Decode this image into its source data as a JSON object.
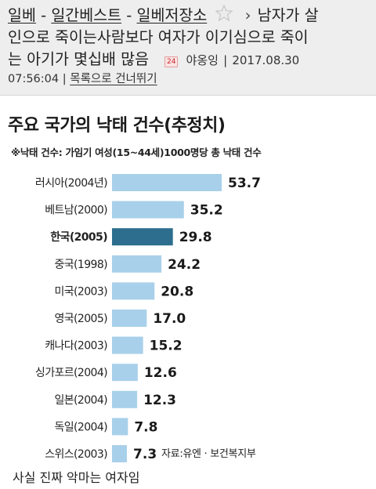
{
  "breadcrumb": {
    "items": [
      "일베",
      "일간베스트",
      "일베저장소"
    ],
    "separator": "-",
    "chevron": "›"
  },
  "post": {
    "title_lines": [
      "남자가 살",
      "인으로 죽이는사람보다 여자가 이기심으로 죽이",
      "는 아기가 몇십배 많음"
    ],
    "badge": "24",
    "author": "야옹잉",
    "date": "2017.08.30",
    "time": "07:56:04",
    "meta_sep": "|",
    "back_to_list": "목록으로 건너뛰기"
  },
  "figure": {
    "title": "주요 국가의 낙태 건수(추정치)",
    "subtitle": "※낙태 건수: 가임기 여성(15~44세)1000명당 총 낙태 건수",
    "source": "자료:유엔 · 보건복지부"
  },
  "chart_data": {
    "type": "bar",
    "orientation": "horizontal",
    "title": "주요 국가의 낙태 건수(추정치)",
    "subtitle": "※낙태 건수: 가임기 여성(15~44세)1000명당 총 낙태 건수",
    "categories": [
      "러시아(2004년)",
      "베트남(2000)",
      "한국(2005)",
      "중국(1998)",
      "미국(2003)",
      "영국(2005)",
      "캐나다(2003)",
      "싱가포르(2004)",
      "일본(2004)",
      "독일(2004)",
      "스위스(2003)"
    ],
    "values": [
      53.7,
      35.2,
      29.8,
      24.2,
      20.8,
      17.0,
      15.2,
      12.6,
      12.3,
      7.8,
      7.3
    ],
    "value_labels": [
      "53.7",
      "35.2",
      "29.8",
      "24.2",
      "20.8",
      "17.0",
      "15.2",
      "12.6",
      "12.3",
      "7.8",
      "7.3"
    ],
    "highlight": "한국(2005)",
    "bar_color": "#a8d0ea",
    "highlight_color": "#2d6e8e",
    "xlim": [
      0,
      53.7
    ],
    "grid": false,
    "legend": false
  },
  "caption": "사실 진짜 악마는 여자임",
  "colors": {
    "header_bg": "#eeeeee",
    "star_fill": "#ececec",
    "star_stroke": "#c9c9c9"
  }
}
